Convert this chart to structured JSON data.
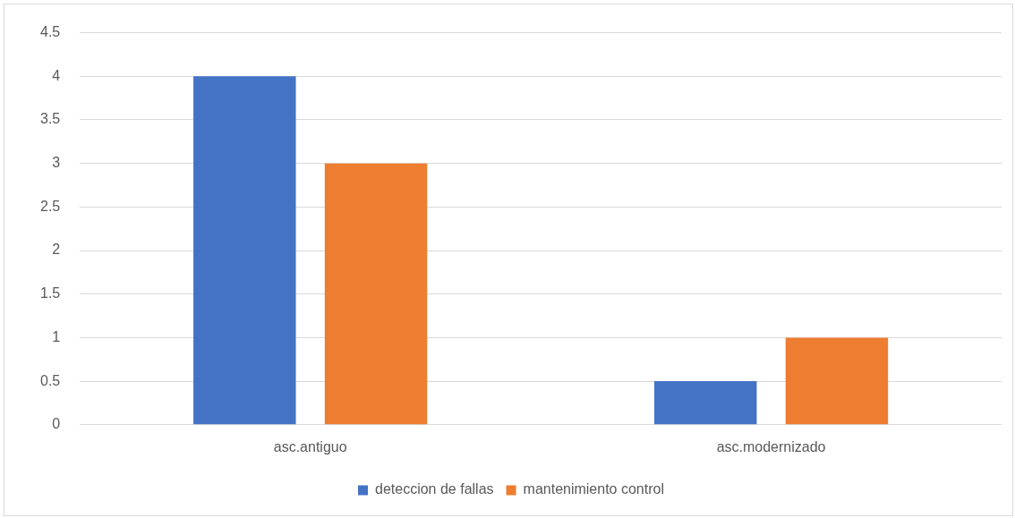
{
  "chart_data": {
    "type": "bar",
    "categories": [
      "asc.antiguo",
      "asc.modernizado"
    ],
    "series": [
      {
        "name": "deteccion de fallas",
        "color": "#4472c4",
        "values": [
          4,
          0.5
        ]
      },
      {
        "name": "mantenimiento control",
        "color": "#ed7d31",
        "values": [
          3,
          1
        ]
      }
    ],
    "ylim": [
      0,
      4.5
    ],
    "yticks": [
      0,
      0.5,
      1,
      1.5,
      2,
      2.5,
      3,
      3.5,
      4,
      4.5
    ],
    "grid": "y",
    "legend": "bottom"
  }
}
